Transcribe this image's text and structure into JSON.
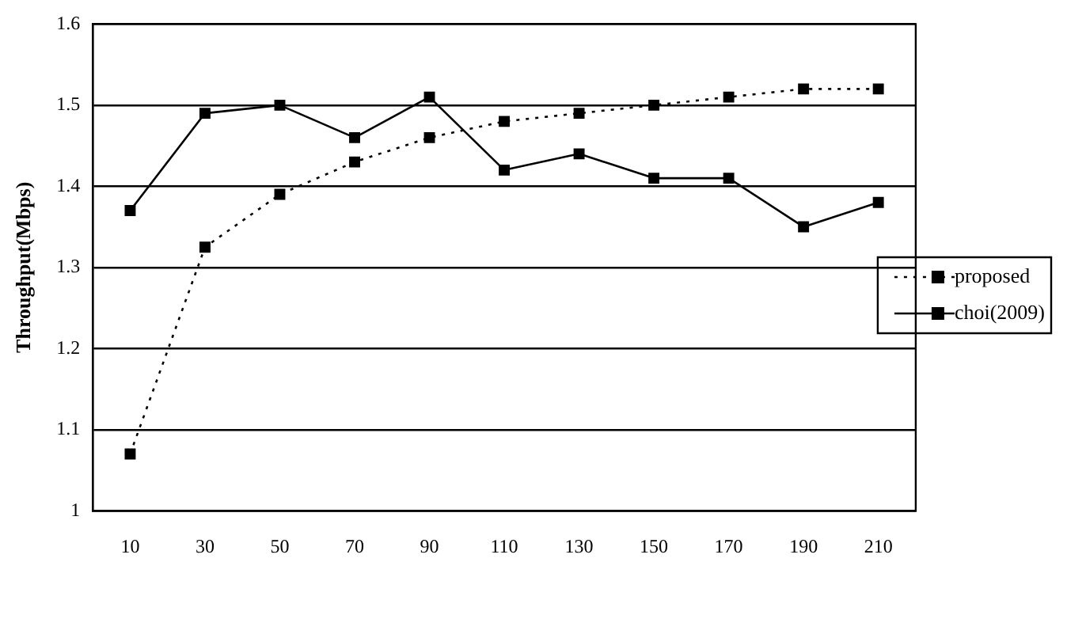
{
  "chart_data": {
    "type": "line",
    "ylabel": "Throughput(Mbps)",
    "categories": [
      "10",
      "30",
      "50",
      "70",
      "90",
      "110",
      "130",
      "150",
      "170",
      "190",
      "210"
    ],
    "series": [
      {
        "name": "proposed",
        "color": "#000000",
        "line_style": "dotted",
        "values": [
          1.07,
          1.325,
          1.39,
          1.43,
          1.46,
          1.48,
          1.49,
          1.5,
          1.51,
          1.52,
          1.52
        ]
      },
      {
        "name": "choi(2009)",
        "color": "#000000",
        "line_style": "solid",
        "values": [
          1.37,
          1.49,
          1.5,
          1.46,
          1.51,
          1.42,
          1.44,
          1.41,
          1.41,
          1.35,
          1.38
        ]
      }
    ],
    "ylim": [
      1,
      1.6
    ],
    "yticks": [
      1,
      1.1,
      1.2,
      1.3,
      1.4,
      1.5,
      1.6
    ],
    "grid": "y",
    "legend": "right",
    "marker": "square"
  }
}
